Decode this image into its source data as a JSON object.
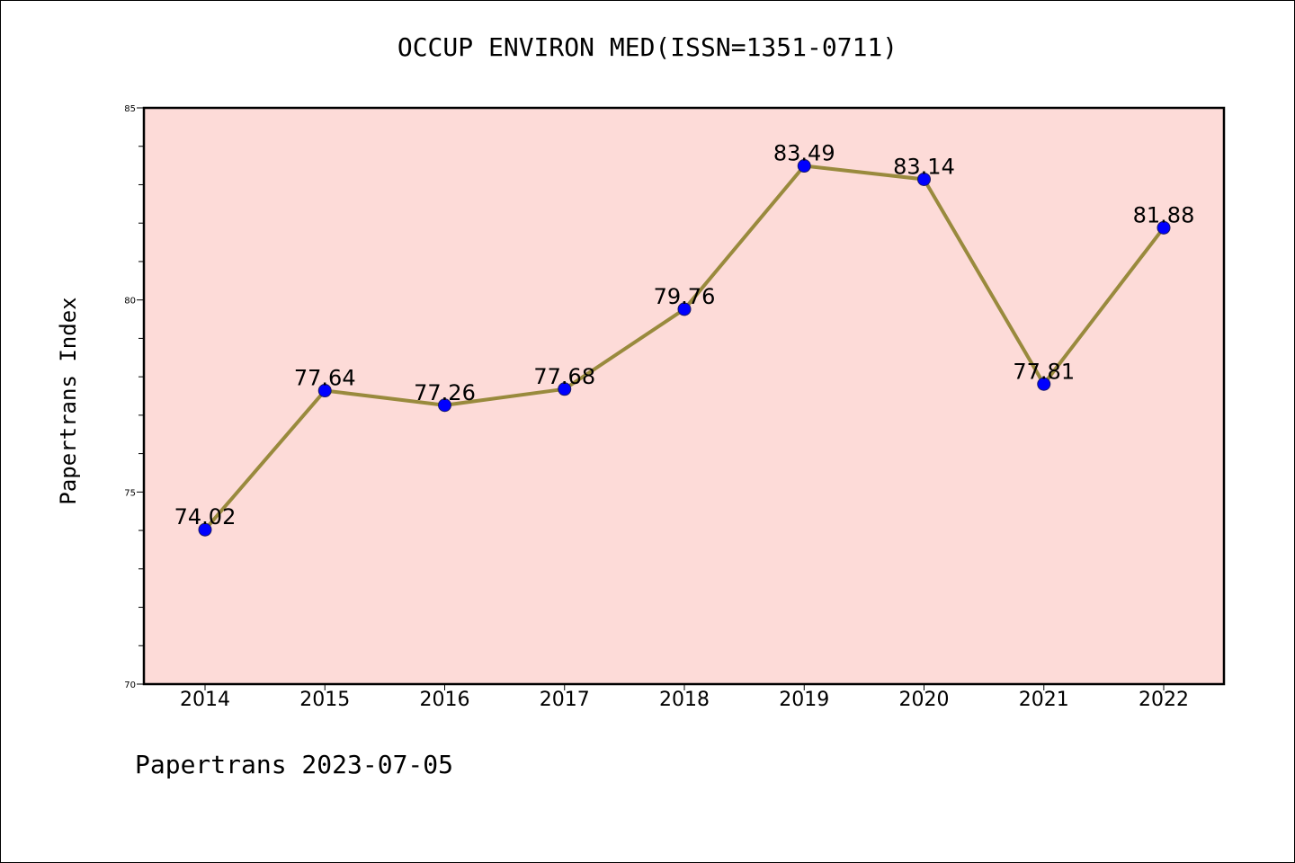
{
  "page": {
    "footer": "Papertrans 2023-07-05"
  },
  "colors": {
    "plot_background": "#fddbd8",
    "line": "#998a3d",
    "marker": "#0000ff",
    "axis": "#000000"
  },
  "chart_data": {
    "type": "line",
    "title": "OCCUP ENVIRON MED(ISSN=1351-0711)",
    "xlabel": "",
    "ylabel": "Papertrans Index",
    "categories": [
      "2014",
      "2015",
      "2016",
      "2017",
      "2018",
      "2019",
      "2020",
      "2021",
      "2022"
    ],
    "series": [
      {
        "values": [
          74.02,
          77.64,
          77.26,
          77.68,
          79.76,
          83.49,
          83.14,
          77.81,
          81.88
        ],
        "data_labels": [
          "74.02",
          "77.64",
          "77.26",
          "77.68",
          "79.76",
          "83.49",
          "83.14",
          "77.81",
          "81.88"
        ]
      }
    ],
    "ylim": [
      70,
      85
    ],
    "y_major_ticks": [
      70,
      75,
      80,
      85
    ],
    "y_major_tick_labels": [
      "70",
      "75",
      "80",
      "85"
    ],
    "y_minor_step": 1,
    "grid": false,
    "legend": "none"
  }
}
